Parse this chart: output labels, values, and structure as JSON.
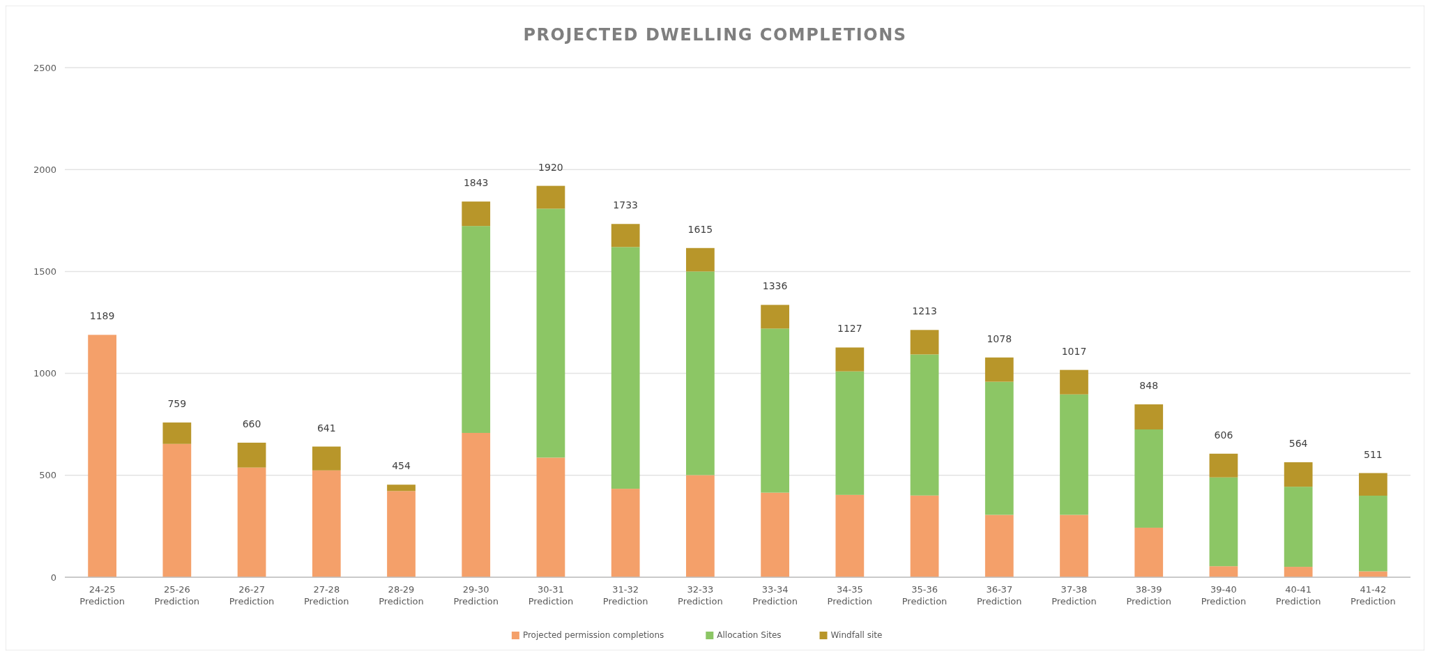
{
  "chart_data": {
    "type": "bar",
    "title": "PROJECTED DWELLING COMPLETIONS",
    "stacked": true,
    "categories": [
      "24-25 Prediction",
      "25-26 Prediction",
      "26-27 Prediction",
      "27-28 Prediction",
      "28-29 Prediction",
      "29-30 Prediction",
      "30-31 Prediction",
      "31-32 Prediction",
      "32-33 Prediction",
      "33-34 Prediction",
      "34-35 Prediction",
      "35-36 Prediction",
      "36-37 Prediction",
      "37-38 Prediction",
      "38-39 Prediction",
      "39-40 Prediction",
      "40-41 Prediction",
      "41-42 Prediction"
    ],
    "series": [
      {
        "name": "Projected permission completions",
        "color": "#f4a06a",
        "values": [
          1189,
          654,
          538,
          524,
          423,
          708,
          587,
          434,
          501,
          415,
          404,
          401,
          306,
          306,
          243,
          54,
          51,
          29
        ]
      },
      {
        "name": "Allocation Sites",
        "color": "#8cc665",
        "values": [
          0,
          0,
          0,
          0,
          0,
          1015,
          1221,
          1186,
          999,
          805,
          606,
          692,
          653,
          591,
          482,
          436,
          393,
          371
        ]
      },
      {
        "name": "Windfall site",
        "color": "#b8962a",
        "values": [
          0,
          105,
          122,
          117,
          31,
          120,
          112,
          113,
          115,
          116,
          117,
          120,
          119,
          120,
          123,
          116,
          120,
          111
        ]
      }
    ],
    "totals": [
      "1189",
      "759",
      "660",
      "641",
      "454",
      "1843",
      "1920",
      "1733",
      "1615",
      "1336",
      "1127",
      "1213",
      "1078",
      "1017",
      "848",
      "606",
      "564",
      "511"
    ],
    "ylim": [
      0,
      2500
    ],
    "yticks": [
      0,
      500,
      1000,
      1500,
      2000,
      2500
    ],
    "grid": "y",
    "legend": "bottom"
  }
}
